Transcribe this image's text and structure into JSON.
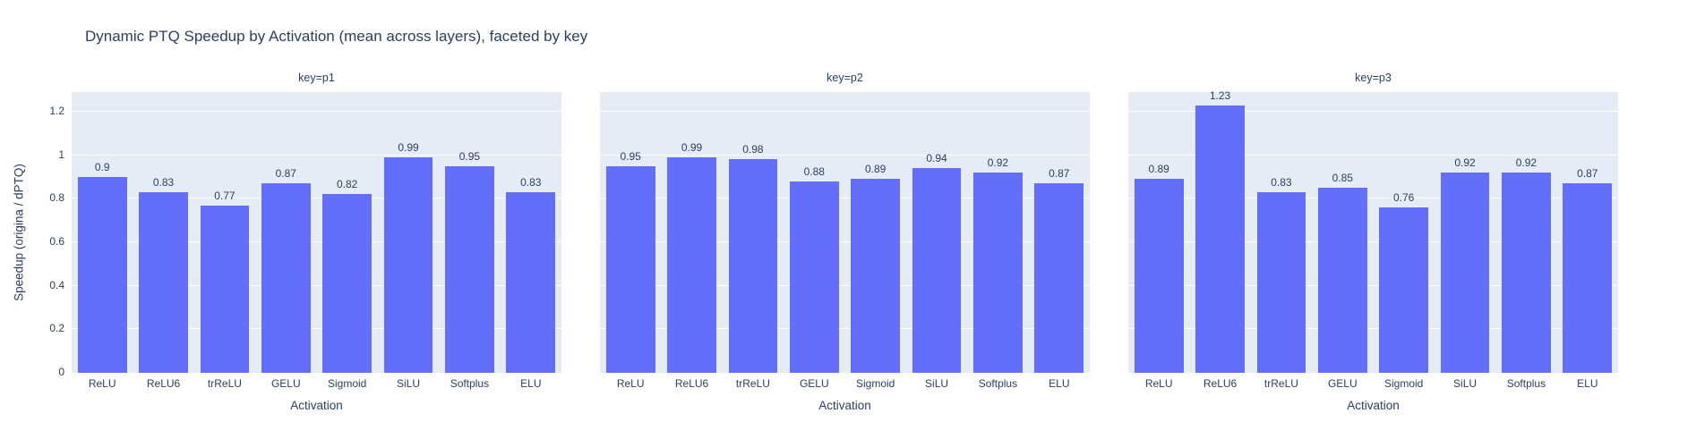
{
  "title": "Dynamic PTQ Speedup by Activation (mean across layers), faceted by key",
  "colors": {
    "bar": "#636efa",
    "plot_bg": "#e5ecf6",
    "grid": "#ffffff",
    "text": "#2a3f5f",
    "paper_bg": "#ffffff"
  },
  "chart_data": {
    "type": "bar",
    "title": "Dynamic PTQ Speedup by Activation (mean across layers), faceted by key",
    "categories": [
      "ReLU",
      "ReLU6",
      "trReLU",
      "GELU",
      "Sigmoid",
      "SiLU",
      "Softplus",
      "ELU"
    ],
    "xlabel": "Activation",
    "ylabel": "Speedup (origina / dPTQ)",
    "ylim": [
      0,
      1.29
    ],
    "yticks": [
      0,
      0.2,
      0.4,
      0.6,
      0.8,
      1,
      1.2
    ],
    "ytick_labels": [
      "0",
      "0.2",
      "0.4",
      "0.6",
      "0.8",
      "1",
      "1.2"
    ],
    "grid": true,
    "legend": false,
    "bar_labels_shown": true,
    "facets": [
      {
        "label": "key=p1",
        "values": [
          0.9,
          0.83,
          0.77,
          0.87,
          0.82,
          0.99,
          0.95,
          0.83
        ]
      },
      {
        "label": "key=p2",
        "values": [
          0.95,
          0.99,
          0.98,
          0.88,
          0.89,
          0.94,
          0.92,
          0.87
        ]
      },
      {
        "label": "key=p3",
        "values": [
          0.89,
          1.23,
          0.83,
          0.85,
          0.76,
          0.92,
          0.92,
          0.87
        ]
      }
    ]
  }
}
